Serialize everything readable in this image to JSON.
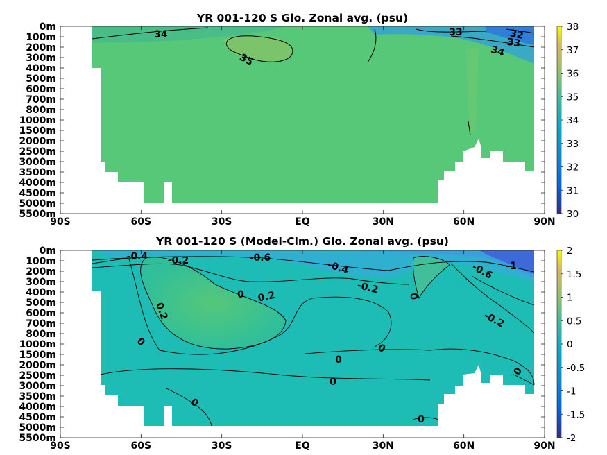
{
  "chart_data": [
    {
      "type": "heatmap",
      "title": "YR 001-120 S Glo. Zonal avg. (psu)",
      "x_ticks": [
        "90S",
        "60S",
        "30S",
        "EQ",
        "30N",
        "60N",
        "90N"
      ],
      "y_ticks": [
        "0m",
        "100m",
        "200m",
        "300m",
        "400m",
        "500m",
        "600m",
        "700m",
        "800m",
        "1000m",
        "1500m",
        "2000m",
        "2500m",
        "3000m",
        "3500m",
        "4000m",
        "4500m",
        "5000m",
        "5500m"
      ],
      "colorbar": {
        "ticks": [
          "38",
          "37",
          "36",
          "35",
          "34",
          "33",
          "32",
          "31",
          "30"
        ],
        "range": [
          30,
          38
        ]
      },
      "contour_labels": [
        "34",
        "35",
        "33",
        "32",
        "33",
        "34"
      ],
      "colors": {
        "field": "#57c878",
        "fresh": "#3c8fe0",
        "low": "#2b2f9e",
        "high": "#f8e620"
      }
    },
    {
      "type": "heatmap",
      "title": "YR 001-120 S (Model-Clm.) Glo. Zonal avg. (psu)",
      "x_ticks": [
        "90S",
        "60S",
        "30S",
        "EQ",
        "30N",
        "60N",
        "90N"
      ],
      "y_ticks": [
        "0m",
        "100m",
        "200m",
        "300m",
        "400m",
        "500m",
        "600m",
        "700m",
        "800m",
        "1000m",
        "1500m",
        "2000m",
        "2500m",
        "3000m",
        "3500m",
        "4000m",
        "4500m",
        "5000m",
        "5500m"
      ],
      "colorbar": {
        "ticks": [
          "2",
          "1.5",
          "1",
          "0.5",
          "0",
          "-0.5",
          "-1",
          "-1.5",
          "-2"
        ],
        "range": [
          -2,
          2
        ]
      },
      "contour_labels": [
        "-0.4",
        "-0.2",
        "-0.6",
        "-0.4",
        "-0.2",
        "-0.6",
        "-1",
        "0",
        "0.2",
        "0.2",
        "0",
        "0",
        "-0.2",
        "0",
        "0",
        "0",
        "0",
        "0",
        "0"
      ],
      "colors": {
        "field": "#1dbcb4",
        "positive": "#4fc47a",
        "negative": "#39a0da",
        "strong_negative": "#3a64d8"
      }
    }
  ]
}
